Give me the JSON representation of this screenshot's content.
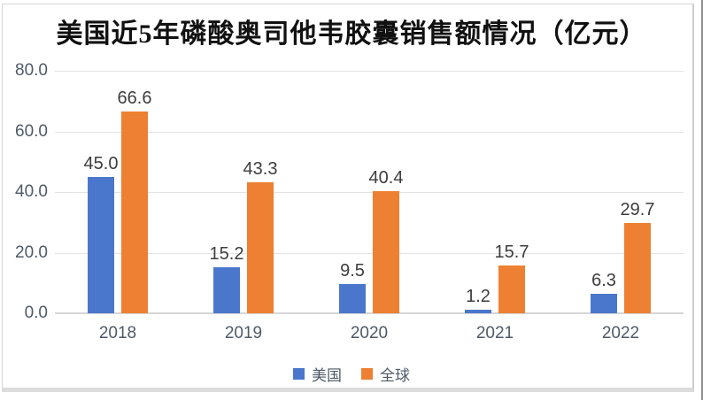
{
  "title": "美国近5年磷酸奥司他韦胶囊销售额情况（亿元）",
  "chart_data": {
    "type": "bar",
    "title": "美国近5年磷酸奥司他韦胶囊销售额情况（亿元）",
    "categories": [
      "2018",
      "2019",
      "2020",
      "2021",
      "2022"
    ],
    "series": [
      {
        "name": "美国",
        "color": "#4a77cb",
        "values": [
          45.0,
          15.2,
          9.5,
          1.2,
          6.3
        ]
      },
      {
        "name": "全球",
        "color": "#ed8032",
        "values": [
          66.6,
          43.3,
          40.4,
          15.7,
          29.7
        ]
      }
    ],
    "xlabel": "",
    "ylabel": "",
    "ylim": [
      0,
      80
    ],
    "y_ticks": [
      "80.0",
      "60.0",
      "40.0",
      "20.0",
      "0.0"
    ],
    "grid": true,
    "legend_position": "bottom",
    "value_labels_shown": true,
    "value_label_decimals": 1
  },
  "colors": {
    "series_us": "#4a77cb",
    "series_global": "#ed8032",
    "gridline": "#e3e3e3",
    "axis_text": "#4e5a68",
    "value_label_text": "#3d3d3d",
    "title_text": "#111111",
    "frame_border": "#d6d6d6"
  }
}
